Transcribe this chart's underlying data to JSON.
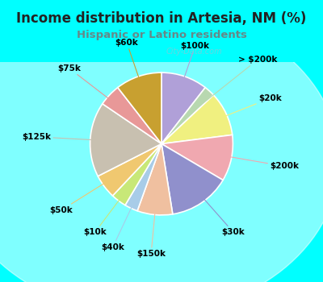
{
  "title": "Income distribution in Artesia, NM (%)",
  "subtitle": "Hispanic or Latino residents",
  "background_color": "#00FFFF",
  "chart_bg_top": "#e8f5f0",
  "chart_bg_bottom": "#d0ede8",
  "segments": [
    {
      "label": "$100k",
      "value": 10.5,
      "color": "#b0a0d8"
    },
    {
      "label": "> $200k",
      "value": 2.5,
      "color": "#b8d8b0"
    },
    {
      "label": "$20k",
      "value": 10.0,
      "color": "#f0f080"
    },
    {
      "label": "$200k",
      "value": 10.5,
      "color": "#f0a8b0"
    },
    {
      "label": "$30k",
      "value": 14.0,
      "color": "#9090cc"
    },
    {
      "label": "$150k",
      "value": 8.0,
      "color": "#f0c0a0"
    },
    {
      "label": "$40k",
      "value": 3.0,
      "color": "#a8cce8"
    },
    {
      "label": "$10k",
      "value": 3.5,
      "color": "#c8e878"
    },
    {
      "label": "$50k",
      "value": 5.5,
      "color": "#f0c870"
    },
    {
      "label": "$125k",
      "value": 17.0,
      "color": "#c8c0b0"
    },
    {
      "label": "$75k",
      "value": 5.0,
      "color": "#e89898"
    },
    {
      "label": "$60k",
      "value": 10.5,
      "color": "#c8a030"
    }
  ],
  "watermark": "City-Data.com",
  "label_fontsize": 7.5,
  "title_fontsize": 12,
  "subtitle_fontsize": 9.5,
  "title_color": "#222222",
  "subtitle_color": "#668888"
}
